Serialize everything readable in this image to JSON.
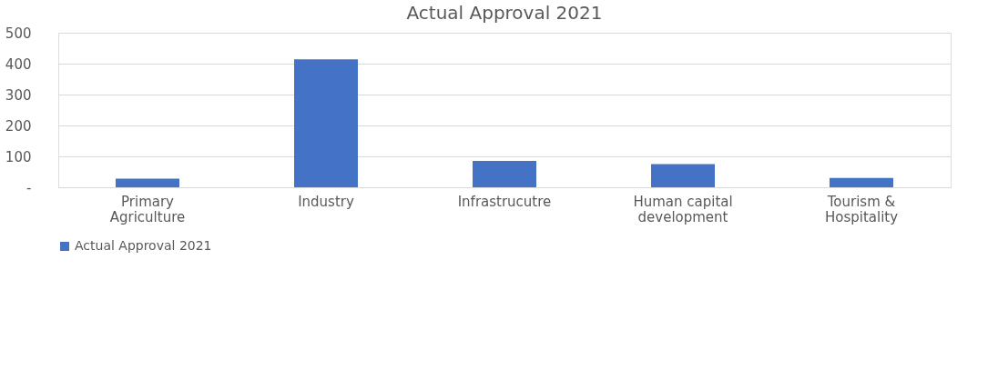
{
  "chart_data": {
    "type": "bar",
    "title": "Actual Approval 2021",
    "categories": [
      "Primary Agriculture",
      "Industry",
      "Infrastrucutre",
      "Human capital development",
      "Tourism & Hospitality"
    ],
    "series": [
      {
        "name": "Actual Approval 2021",
        "color": "#4472c4",
        "values": [
          28,
          414,
          85,
          75,
          30
        ]
      }
    ],
    "ylim": [
      0,
      500
    ],
    "yticks": [
      {
        "value": 0,
        "label": "-"
      },
      100,
      200,
      300,
      400,
      500
    ],
    "grid": "y",
    "legend": "bottom"
  }
}
